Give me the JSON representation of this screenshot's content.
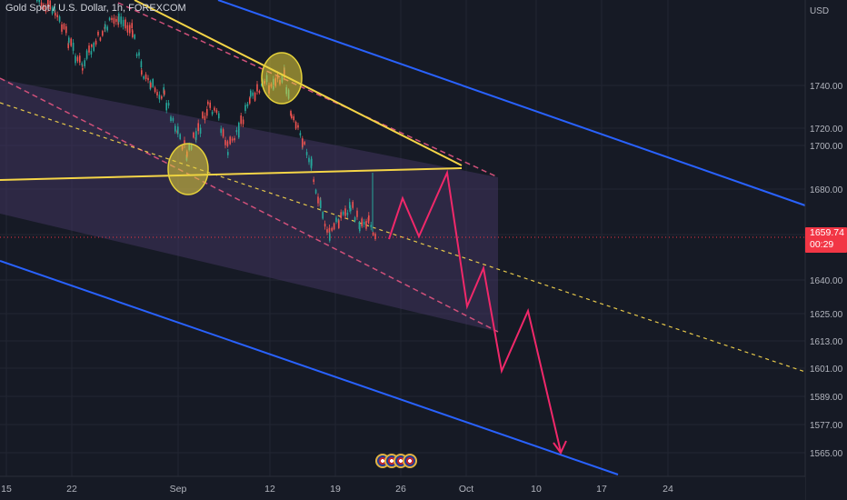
{
  "chart_data": {
    "type": "line",
    "title": "Gold Spot / U.S. Dollar, 1h, FOREXCOM",
    "currency": "USD",
    "y_ticks": [
      1740,
      1720,
      1700,
      1680,
      1660,
      1640,
      1625,
      1613,
      1601,
      1589,
      1577,
      1565
    ],
    "x_ticks": [
      "15",
      "22",
      "Sep",
      "12",
      "19",
      "26",
      "Oct",
      "10",
      "17",
      "24"
    ],
    "last_price": "1659.74",
    "countdown": "00:29",
    "colors": {
      "background": "#161a25",
      "candle_up": "#26a69a",
      "candle_down": "#ef5350",
      "trendline": "#f5d547",
      "outer_channel": "#2962ff",
      "inner_channel_dash": "#d0507a",
      "projection": "#f0286a",
      "price_line": "#f23645",
      "marker_circle": "#e6d23a"
    },
    "projection_path": [
      1659.74,
      1675,
      1662,
      1690,
      1650,
      1630,
      1643,
      1616,
      1603,
      1628,
      1566
    ],
    "event_icons": [
      "us-flag-icon",
      "us-flag-icon",
      "us-flag-icon",
      "us-flag-icon"
    ]
  }
}
